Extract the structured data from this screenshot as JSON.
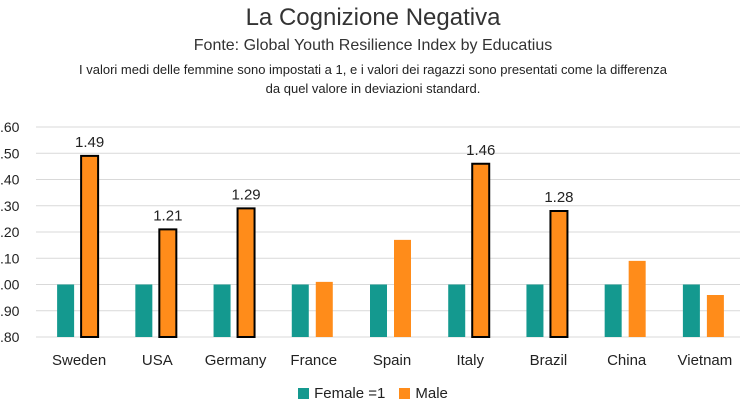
{
  "chart_data": {
    "type": "bar",
    "title": "La Cognizione Negativa",
    "subtitle": "Fonte: Global Youth Resilience Index by Educatius",
    "note_line1": "I valori medi delle femmine sono impostati a 1, e i valori dei ragazzi sono presentati come la differenza",
    "note_line2": "da quel valore in deviazioni standard.",
    "categories": [
      "Sweden",
      "USA",
      "Germany",
      "France",
      "Spain",
      "Italy",
      "Brazil",
      "China",
      "Vietnam"
    ],
    "series": [
      {
        "name": "Female =1",
        "color": "#14998f",
        "values": [
          1.0,
          1.0,
          1.0,
          1.0,
          1.0,
          1.0,
          1.0,
          1.0,
          1.0
        ]
      },
      {
        "name": "Male",
        "color": "#ff8c1a",
        "values": [
          1.49,
          1.21,
          1.29,
          1.01,
          1.17,
          1.46,
          1.28,
          1.09,
          0.96
        ]
      }
    ],
    "data_labels": [
      "1.49",
      "1.21",
      "1.29",
      "",
      "",
      "1.46",
      "1.28",
      "",
      ""
    ],
    "highlighted": [
      true,
      true,
      true,
      false,
      false,
      true,
      true,
      false,
      false
    ],
    "ylim": [
      0.8,
      1.6
    ],
    "yticks": [
      ".80",
      ".90",
      ".00",
      ".10",
      ".20",
      ".30",
      ".40",
      ".50",
      ".60"
    ],
    "grid": true,
    "legend_position": "bottom"
  }
}
